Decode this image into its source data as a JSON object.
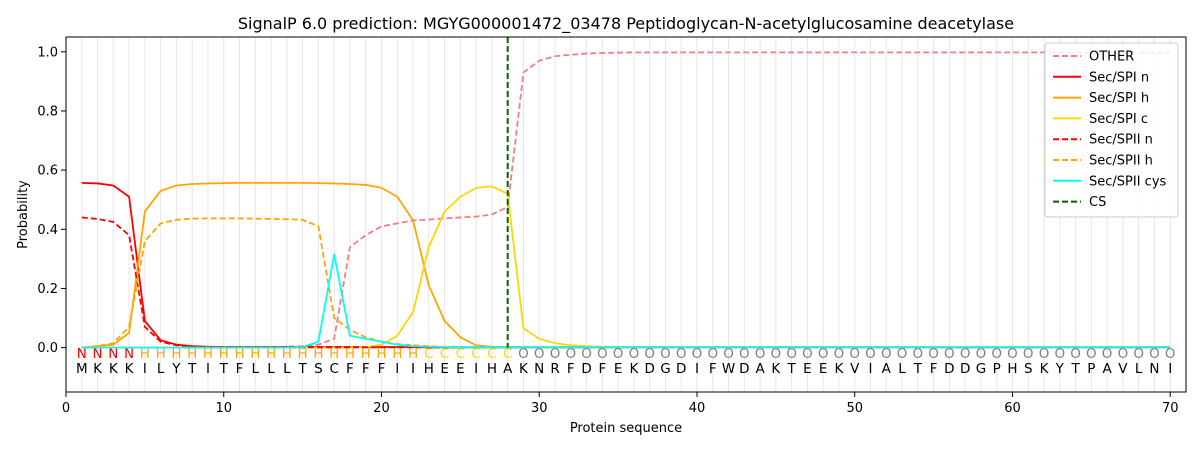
{
  "chart_data": {
    "type": "line",
    "title": "SignalP 6.0 prediction: MGYG000001472_03478 Peptidoglycan-N-acetylglucosamine deacetylase",
    "xlabel": "Protein sequence",
    "ylabel": "Probability",
    "xlim": [
      0,
      71
    ],
    "ylim": [
      -0.15,
      1.05
    ],
    "xticks": [
      0,
      10,
      20,
      30,
      40,
      50,
      60,
      70
    ],
    "yticks": [
      0.0,
      0.2,
      0.4,
      0.6,
      0.8,
      1.0
    ],
    "xtick_labels": [
      "0",
      "10",
      "20",
      "30",
      "40",
      "50",
      "60",
      "70"
    ],
    "ytick_labels": [
      "0.0",
      "0.2",
      "0.4",
      "0.6",
      "0.8",
      "1.0"
    ],
    "grid": "vertical lines at each residue",
    "legend_position": "top-right",
    "sequence": [
      "M",
      "K",
      "K",
      "K",
      "I",
      "L",
      "Y",
      "T",
      "I",
      "T",
      "F",
      "L",
      "L",
      "L",
      "T",
      "S",
      "C",
      "F",
      "F",
      "F",
      "I",
      "I",
      "H",
      "E",
      "E",
      "I",
      "H",
      "A",
      "K",
      "N",
      "R",
      "F",
      "D",
      "F",
      "E",
      "K",
      "D",
      "G",
      "D",
      "I",
      "F",
      "W",
      "D",
      "A",
      "K",
      "T",
      "E",
      "E",
      "K",
      "V",
      "I",
      "A",
      "L",
      "T",
      "F",
      "D",
      "D",
      "G",
      "P",
      "H",
      "S",
      "K",
      "Y",
      "T",
      "P",
      "A",
      "V",
      "L",
      "N",
      "I"
    ],
    "labels": [
      "N",
      "N",
      "N",
      "N",
      "H",
      "H",
      "H",
      "H",
      "H",
      "H",
      "H",
      "H",
      "H",
      "H",
      "H",
      "H",
      "H",
      "H",
      "H",
      "H",
      "H",
      "H",
      "C",
      "C",
      "C",
      "C",
      "C",
      "C",
      "O",
      "O",
      "O",
      "O",
      "O",
      "O",
      "O",
      "O",
      "O",
      "O",
      "O",
      "O",
      "O",
      "O",
      "O",
      "O",
      "O",
      "O",
      "O",
      "O",
      "O",
      "O",
      "O",
      "O",
      "O",
      "O",
      "O",
      "O",
      "O",
      "O",
      "O",
      "O",
      "O",
      "O",
      "O",
      "O",
      "O",
      "O",
      "O",
      "O",
      "O",
      "O"
    ],
    "label_colors": {
      "N": "#ff0000",
      "H": "#ffa500",
      "C": "#ffd700",
      "O": "#808080"
    },
    "cleavage_site": 28,
    "series": [
      {
        "name": "OTHER",
        "color": "#f08080",
        "dash": "dashed",
        "values": [
          0.0,
          0.0,
          0.0,
          0.0,
          0.0,
          0.0,
          0.0,
          0.0,
          0.0,
          0.0,
          0.0,
          0.001,
          0.002,
          0.003,
          0.005,
          0.01,
          0.03,
          0.34,
          0.38,
          0.41,
          0.42,
          0.43,
          0.433,
          0.437,
          0.44,
          0.443,
          0.45,
          0.475,
          0.93,
          0.97,
          0.985,
          0.99,
          0.994,
          0.996,
          0.997,
          0.998,
          0.998,
          0.998,
          0.998,
          0.998,
          0.998,
          0.998,
          0.998,
          0.998,
          0.998,
          0.998,
          0.998,
          0.998,
          0.998,
          0.998,
          0.998,
          0.998,
          0.998,
          0.998,
          0.998,
          0.998,
          0.998,
          0.998,
          0.998,
          0.998,
          0.998,
          0.998,
          0.998,
          0.997,
          0.997,
          0.997,
          0.997,
          0.997,
          0.997,
          0.997
        ]
      },
      {
        "name": "Sec/SPI n",
        "color": "#ff0000",
        "dash": "solid",
        "values": [
          0.557,
          0.555,
          0.548,
          0.51,
          0.09,
          0.025,
          0.01,
          0.005,
          0.003,
          0.002,
          0.002,
          0.002,
          0.002,
          0.002,
          0.002,
          0.002,
          0.002,
          0.002,
          0.002,
          0.002,
          0.002,
          0.002,
          0.001,
          0.001,
          0.001,
          0.001,
          0.001,
          0.001,
          0.001,
          0.001,
          0.001,
          0.001,
          0.001,
          0.001,
          0.001,
          0.001,
          0.001,
          0.001,
          0.001,
          0.001,
          0.001,
          0.001,
          0.001,
          0.001,
          0.001,
          0.001,
          0.001,
          0.001,
          0.001,
          0.001,
          0.001,
          0.001,
          0.001,
          0.001,
          0.001,
          0.001,
          0.001,
          0.001,
          0.001,
          0.001,
          0.001,
          0.001,
          0.001,
          0.001,
          0.001,
          0.001,
          0.001,
          0.001,
          0.001,
          0.001
        ]
      },
      {
        "name": "Sec/SPI h",
        "color": "#ffa500",
        "dash": "solid",
        "values": [
          0.0,
          0.005,
          0.01,
          0.05,
          0.46,
          0.53,
          0.548,
          0.553,
          0.555,
          0.556,
          0.557,
          0.557,
          0.557,
          0.557,
          0.557,
          0.556,
          0.555,
          0.553,
          0.55,
          0.54,
          0.51,
          0.43,
          0.21,
          0.09,
          0.035,
          0.008,
          0.003,
          0.002,
          0.001,
          0.001,
          0.001,
          0.001,
          0.001,
          0.001,
          0.001,
          0.001,
          0.001,
          0.001,
          0.001,
          0.001,
          0.001,
          0.001,
          0.001,
          0.001,
          0.001,
          0.001,
          0.001,
          0.001,
          0.001,
          0.001,
          0.001,
          0.001,
          0.001,
          0.001,
          0.001,
          0.001,
          0.001,
          0.001,
          0.001,
          0.001,
          0.001,
          0.001,
          0.001,
          0.001,
          0.001,
          0.001,
          0.001,
          0.001,
          0.001,
          0.001
        ]
      },
      {
        "name": "Sec/SPI c",
        "color": "#ffd700",
        "dash": "solid",
        "values": [
          0.0,
          0.0,
          0.0,
          0.0,
          0.0,
          0.0,
          0.0,
          0.0,
          0.0,
          0.0,
          0.0,
          0.0,
          0.0,
          0.0,
          0.0,
          0.0,
          0.0,
          0.0,
          0.002,
          0.01,
          0.04,
          0.12,
          0.34,
          0.46,
          0.51,
          0.54,
          0.545,
          0.52,
          0.065,
          0.03,
          0.015,
          0.008,
          0.005,
          0.003,
          0.002,
          0.001,
          0.001,
          0.001,
          0.001,
          0.001,
          0.001,
          0.001,
          0.001,
          0.001,
          0.001,
          0.001,
          0.001,
          0.001,
          0.001,
          0.001,
          0.001,
          0.001,
          0.001,
          0.001,
          0.001,
          0.001,
          0.001,
          0.001,
          0.001,
          0.001,
          0.001,
          0.001,
          0.001,
          0.001,
          0.001,
          0.001,
          0.001,
          0.001,
          0.001,
          0.001
        ]
      },
      {
        "name": "Sec/SPII n",
        "color": "#ff0000",
        "dash": "dashed",
        "values": [
          0.44,
          0.435,
          0.425,
          0.38,
          0.07,
          0.02,
          0.008,
          0.004,
          0.002,
          0.002,
          0.001,
          0.001,
          0.001,
          0.001,
          0.001,
          0.001,
          0.001,
          0.001,
          0.001,
          0.001,
          0.001,
          0.001,
          0.001,
          0.001,
          0.001,
          0.001,
          0.001,
          0.001,
          0.001,
          0.001,
          0.001,
          0.001,
          0.001,
          0.001,
          0.001,
          0.001,
          0.001,
          0.001,
          0.001,
          0.001,
          0.001,
          0.001,
          0.001,
          0.001,
          0.001,
          0.001,
          0.001,
          0.001,
          0.001,
          0.001,
          0.001,
          0.001,
          0.001,
          0.001,
          0.001,
          0.001,
          0.001,
          0.001,
          0.001,
          0.001,
          0.001,
          0.001,
          0.001,
          0.001,
          0.001,
          0.001,
          0.001,
          0.001,
          0.001,
          0.001
        ]
      },
      {
        "name": "Sec/SPII h",
        "color": "#ffa500",
        "dash": "dashed",
        "values": [
          0.0,
          0.005,
          0.015,
          0.07,
          0.36,
          0.42,
          0.432,
          0.436,
          0.437,
          0.437,
          0.437,
          0.436,
          0.435,
          0.434,
          0.432,
          0.41,
          0.1,
          0.06,
          0.035,
          0.02,
          0.012,
          0.008,
          0.005,
          0.003,
          0.002,
          0.001,
          0.001,
          0.001,
          0.001,
          0.001,
          0.001,
          0.001,
          0.001,
          0.001,
          0.001,
          0.001,
          0.001,
          0.001,
          0.001,
          0.001,
          0.001,
          0.001,
          0.001,
          0.001,
          0.001,
          0.001,
          0.001,
          0.001,
          0.001,
          0.001,
          0.001,
          0.001,
          0.001,
          0.001,
          0.001,
          0.001,
          0.001,
          0.001,
          0.001,
          0.001,
          0.001,
          0.001,
          0.001,
          0.001,
          0.001,
          0.001,
          0.001,
          0.001,
          0.001,
          0.001
        ]
      },
      {
        "name": "Sec/SPII cys",
        "color": "#00ffff",
        "dash": "solid",
        "values": [
          0.0,
          0.0,
          0.0,
          0.0,
          0.0,
          0.0,
          0.0,
          0.0,
          0.0,
          0.0,
          0.0,
          0.0,
          0.0,
          0.0,
          0.002,
          0.02,
          0.315,
          0.04,
          0.03,
          0.02,
          0.01,
          0.005,
          0.003,
          0.002,
          0.001,
          0.001,
          0.001,
          0.001,
          0.001,
          0.001,
          0.001,
          0.001,
          0.001,
          0.001,
          0.001,
          0.001,
          0.001,
          0.001,
          0.001,
          0.001,
          0.001,
          0.001,
          0.001,
          0.001,
          0.001,
          0.001,
          0.001,
          0.001,
          0.001,
          0.001,
          0.001,
          0.001,
          0.001,
          0.001,
          0.001,
          0.001,
          0.001,
          0.001,
          0.001,
          0.001,
          0.001,
          0.001,
          0.001,
          0.001,
          0.001,
          0.001,
          0.001,
          0.001,
          0.001,
          0.001
        ]
      },
      {
        "name": "CS",
        "color": "#006400",
        "dash": "dashed",
        "vertical_at": 28
      }
    ]
  }
}
